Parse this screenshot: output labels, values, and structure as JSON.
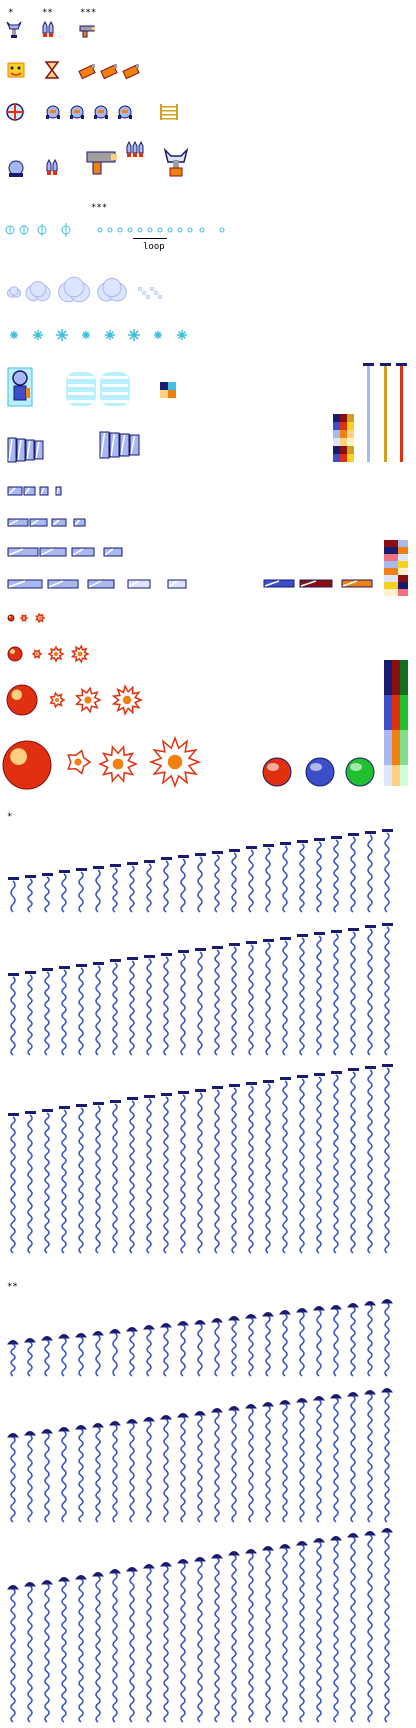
{
  "labels": {
    "level1": "*",
    "level2": "**",
    "level3": "***",
    "level3_projectile": "***",
    "loop": "loop",
    "section_level1": "*",
    "section_level2": "**"
  },
  "palette": {
    "navy": "#1a1a6e",
    "blue": "#3a4fc8",
    "light_blue": "#a8b8f0",
    "pale_blue": "#dde4ff",
    "cyan": "#40c0e0",
    "light_cyan": "#b8f0ff",
    "orange": "#f08010",
    "light_orange": "#ffd080",
    "red": "#e03010",
    "dark_red": "#8a1010",
    "yellow": "#f8d020",
    "green": "#20c030",
    "dark_green": "#107020",
    "pink": "#f07080",
    "gold": "#d0a020",
    "gray": "#a0a0a0"
  },
  "icons": [
    "claw-arm-icon",
    "twin-missile-icon",
    "blaster-icon",
    "face-badge-icon",
    "hourglass-icon",
    "bomb-icon",
    "compass-target-icon",
    "robot-drone-icon",
    "ladder-icon",
    "wave-blaster-icon",
    "triple-missile-icon",
    "grabber-claw-icon",
    "ice-sparkle-icon",
    "cloud-puff-icon",
    "snowflake-icon",
    "armored-knight-icon",
    "striped-cloud-icon",
    "screw-pole-icon",
    "glass-panel-icon",
    "fire-orb-icon",
    "burst-explosion-icon",
    "red-sphere-icon",
    "blue-sphere-icon",
    "green-sphere-icon",
    "coil-spring-icon"
  ]
}
